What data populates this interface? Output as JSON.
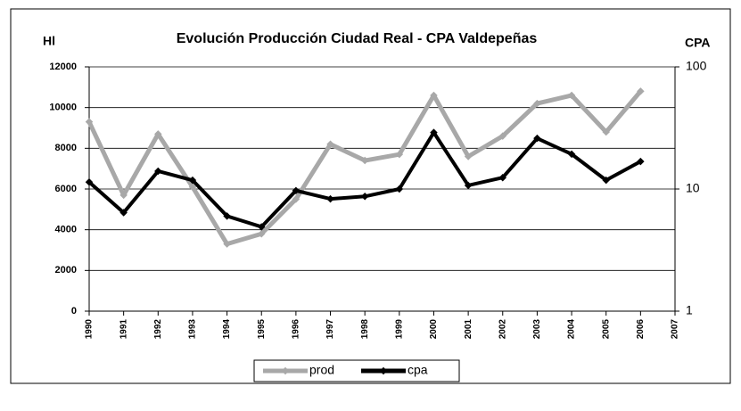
{
  "chart_data": {
    "type": "line",
    "title": "Evolución Producción Ciudad Real - CPA Valdepeñas",
    "y_label": "Hl",
    "y2_label": "CPA",
    "categories": [
      "1990",
      "1991",
      "1992",
      "1993",
      "1994",
      "1995",
      "1996",
      "1997",
      "1998",
      "1999",
      "2000",
      "2001",
      "2002",
      "2003",
      "2004",
      "2005",
      "2006",
      "2007"
    ],
    "series": [
      {
        "name": "prod",
        "color": "#a8a8a8",
        "axis": "y",
        "values": [
          9300,
          5700,
          8700,
          6100,
          3300,
          3800,
          5500,
          8200,
          7400,
          7700,
          10600,
          7600,
          8600,
          10200,
          10600,
          8800,
          10800,
          null
        ]
      },
      {
        "name": "cpa",
        "color": "#000000",
        "axis": "y2",
        "values": [
          11.4,
          6.4,
          14,
          11.8,
          6,
          4.9,
          9.7,
          8.3,
          8.7,
          10,
          29,
          10.7,
          12.4,
          26,
          19.3,
          11.8,
          16.8,
          null
        ]
      }
    ],
    "ylim": [
      0,
      12000
    ],
    "yticks": [
      0,
      2000,
      4000,
      6000,
      8000,
      10000,
      12000
    ],
    "y2lim": [
      1,
      100
    ],
    "y2ticks": [
      1,
      10,
      100
    ],
    "y2log": true,
    "grid": true,
    "legend": "bottom"
  }
}
